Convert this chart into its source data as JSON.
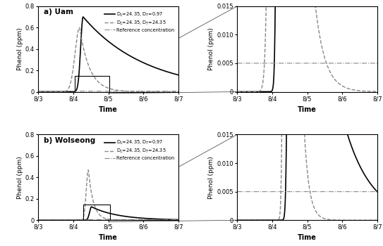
{
  "title_a": "a) Uam",
  "title_b": "b) Wolseong",
  "ylabel": "Phenol (ppm)",
  "xlabel": "Time",
  "ylim_full": [
    0,
    0.8
  ],
  "ylim_zoom": [
    0,
    0.015
  ],
  "reference_conc": 0.005,
  "legend_line1": "D$_L$=24.35, D$_T$=0.97",
  "legend_line2": "D$_L$=24.35, D$_T$=24.35",
  "legend_line3": "Reference concentration",
  "xticks": [
    0,
    1,
    2,
    3,
    4
  ],
  "xticklabels": [
    "8/3",
    "8/4",
    "8/5",
    "8/6",
    "8/7"
  ],
  "yticks_full": [
    0,
    0.2,
    0.4,
    0.6,
    0.8
  ],
  "yticks_zoom": [
    0,
    0.005,
    0.01,
    0.015
  ],
  "background": "#ffffff",
  "line1_color": "#000000",
  "line2_color": "#888888",
  "line3_color": "#888888",
  "uam_solid_peak_t": 1.28,
  "uam_solid_peak_v": 0.7,
  "uam_solid_sigma": 0.07,
  "uam_solid_decay": 0.55,
  "uam_dashed_peak_t": 1.18,
  "uam_dashed_peak_v": 0.6,
  "uam_dashed_sigma": 0.13,
  "uam_dashed_decay": 3.5,
  "wol_solid_peak_t": 1.52,
  "wol_solid_peak_v": 0.125,
  "wol_solid_sigma": 0.055,
  "wol_solid_decay": 1.3,
  "wol_dashed_peak_t": 1.43,
  "wol_dashed_peak_v": 0.47,
  "wol_dashed_sigma": 0.06,
  "wol_dashed_decay": 7.0
}
